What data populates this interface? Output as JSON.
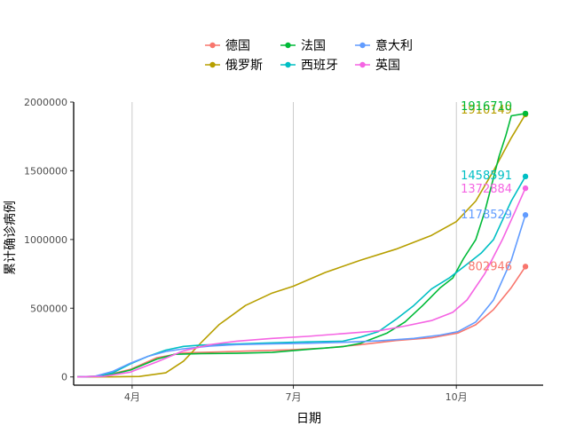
{
  "chart_data": {
    "type": "line",
    "xlabel": "日期",
    "ylabel": "累计确诊病例",
    "x_ticks": [
      {
        "day": 31,
        "label": "4月"
      },
      {
        "day": 122,
        "label": "7月"
      },
      {
        "day": 214,
        "label": "10月"
      }
    ],
    "xlim": [
      -2,
      263
    ],
    "ylim": [
      -60000,
      2000000
    ],
    "y_ticks": [
      0,
      500000,
      1000000,
      1500000,
      2000000
    ],
    "y_tick_labels": [
      "0",
      "500000",
      "1000000",
      "1500000",
      "2000000"
    ],
    "legend_position": "top",
    "grid": "vertical major lines",
    "series": [
      {
        "name": "德国",
        "color": "#F8766D",
        "end_value": 802946,
        "end_label": "802946",
        "points": [
          [
            0,
            0
          ],
          [
            15,
            8000
          ],
          [
            30,
            55000
          ],
          [
            45,
            140000
          ],
          [
            60,
            175000
          ],
          [
            80,
            182000
          ],
          [
            100,
            190000
          ],
          [
            120,
            197000
          ],
          [
            140,
            210000
          ],
          [
            160,
            235000
          ],
          [
            180,
            265000
          ],
          [
            200,
            285000
          ],
          [
            215,
            320000
          ],
          [
            225,
            380000
          ],
          [
            235,
            490000
          ],
          [
            245,
            650000
          ],
          [
            253,
            802946
          ]
        ]
      },
      {
        "name": "俄罗斯",
        "color": "#B79F00",
        "end_value": 1910149,
        "end_label": "1910149",
        "points": [
          [
            0,
            0
          ],
          [
            20,
            500
          ],
          [
            35,
            3000
          ],
          [
            50,
            30000
          ],
          [
            60,
            115000
          ],
          [
            70,
            250000
          ],
          [
            80,
            380000
          ],
          [
            95,
            520000
          ],
          [
            110,
            610000
          ],
          [
            122,
            660000
          ],
          [
            140,
            760000
          ],
          [
            160,
            850000
          ],
          [
            180,
            930000
          ],
          [
            200,
            1030000
          ],
          [
            214,
            1130000
          ],
          [
            225,
            1280000
          ],
          [
            235,
            1500000
          ],
          [
            245,
            1740000
          ],
          [
            253,
            1910149
          ]
        ]
      },
      {
        "name": "法国",
        "color": "#00BA38",
        "end_value": 1916710,
        "end_label": "1916710",
        "points": [
          [
            0,
            0
          ],
          [
            15,
            6000
          ],
          [
            30,
            50000
          ],
          [
            45,
            130000
          ],
          [
            55,
            165000
          ],
          [
            70,
            170000
          ],
          [
            90,
            172000
          ],
          [
            110,
            178000
          ],
          [
            130,
            200000
          ],
          [
            150,
            220000
          ],
          [
            160,
            245000
          ],
          [
            175,
            320000
          ],
          [
            185,
            400000
          ],
          [
            195,
            520000
          ],
          [
            205,
            650000
          ],
          [
            212,
            720000
          ],
          [
            218,
            860000
          ],
          [
            225,
            1000000
          ],
          [
            230,
            1200000
          ],
          [
            234,
            1400000
          ],
          [
            238,
            1600000
          ],
          [
            242,
            1760000
          ],
          [
            245,
            1900000
          ],
          [
            253,
            1916710
          ]
        ]
      },
      {
        "name": "西班牙",
        "color": "#00BFC4",
        "end_value": 1458591,
        "end_label": "1458591",
        "points": [
          [
            0,
            0
          ],
          [
            10,
            3000
          ],
          [
            20,
            30000
          ],
          [
            30,
            95000
          ],
          [
            40,
            150000
          ],
          [
            50,
            195000
          ],
          [
            60,
            222000
          ],
          [
            70,
            232000
          ],
          [
            90,
            240000
          ],
          [
            110,
            248000
          ],
          [
            130,
            255000
          ],
          [
            150,
            260000
          ],
          [
            160,
            290000
          ],
          [
            170,
            330000
          ],
          [
            180,
            420000
          ],
          [
            190,
            520000
          ],
          [
            200,
            640000
          ],
          [
            210,
            720000
          ],
          [
            220,
            820000
          ],
          [
            228,
            900000
          ],
          [
            235,
            1000000
          ],
          [
            240,
            1140000
          ],
          [
            245,
            1280000
          ],
          [
            253,
            1458591
          ]
        ]
      },
      {
        "name": "意大利",
        "color": "#619CFF",
        "end_value": 1178529,
        "end_label": "1178529",
        "points": [
          [
            0,
            0
          ],
          [
            10,
            5000
          ],
          [
            20,
            40000
          ],
          [
            30,
            100000
          ],
          [
            40,
            150000
          ],
          [
            50,
            185000
          ],
          [
            60,
            205000
          ],
          [
            75,
            225000
          ],
          [
            90,
            235000
          ],
          [
            110,
            240000
          ],
          [
            130,
            245000
          ],
          [
            150,
            252000
          ],
          [
            170,
            262000
          ],
          [
            190,
            280000
          ],
          [
            205,
            305000
          ],
          [
            215,
            330000
          ],
          [
            225,
            400000
          ],
          [
            235,
            560000
          ],
          [
            245,
            850000
          ],
          [
            253,
            1178529
          ]
        ]
      },
      {
        "name": "英国",
        "color": "#F564E3",
        "end_value": 1372884,
        "end_label": "1372884",
        "points": [
          [
            0,
            0
          ],
          [
            15,
            4000
          ],
          [
            30,
            35000
          ],
          [
            45,
            110000
          ],
          [
            60,
            190000
          ],
          [
            75,
            235000
          ],
          [
            90,
            260000
          ],
          [
            110,
            280000
          ],
          [
            130,
            295000
          ],
          [
            150,
            315000
          ],
          [
            170,
            335000
          ],
          [
            185,
            370000
          ],
          [
            200,
            410000
          ],
          [
            212,
            470000
          ],
          [
            220,
            560000
          ],
          [
            230,
            750000
          ],
          [
            240,
            1000000
          ],
          [
            247,
            1200000
          ],
          [
            253,
            1372884
          ]
        ]
      }
    ]
  }
}
